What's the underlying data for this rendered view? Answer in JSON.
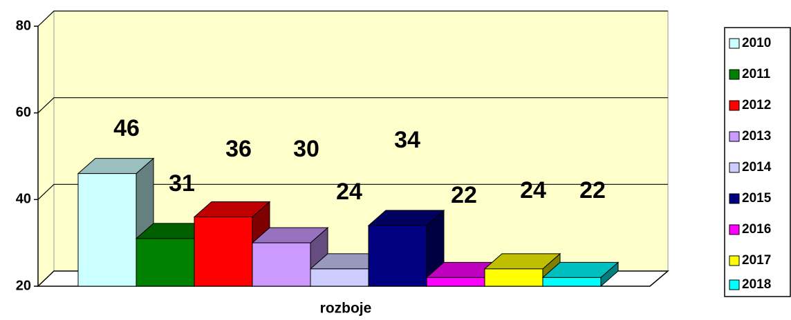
{
  "chart_data": {
    "type": "bar3d",
    "categories": [
      "rozboje"
    ],
    "series": [
      {
        "name": "2010",
        "color": "#ccffff",
        "values": [
          46
        ]
      },
      {
        "name": "2011",
        "color": "#008000",
        "values": [
          31
        ]
      },
      {
        "name": "2012",
        "color": "#ff0000",
        "values": [
          36
        ]
      },
      {
        "name": "2013",
        "color": "#cc99ff",
        "values": [
          30
        ]
      },
      {
        "name": "2014",
        "color": "#ccccff",
        "values": [
          24
        ]
      },
      {
        "name": "2015",
        "color": "#000080",
        "values": [
          34
        ]
      },
      {
        "name": "2016",
        "color": "#ff00ff",
        "values": [
          22
        ]
      },
      {
        "name": "2017",
        "color": "#ffff00",
        "values": [
          24
        ]
      },
      {
        "name": "2018",
        "color": "#00ffff",
        "values": [
          22
        ]
      }
    ],
    "ylim": [
      20,
      80
    ],
    "yticks": [
      20,
      40,
      60,
      80
    ],
    "grid": true,
    "legend": "right"
  }
}
